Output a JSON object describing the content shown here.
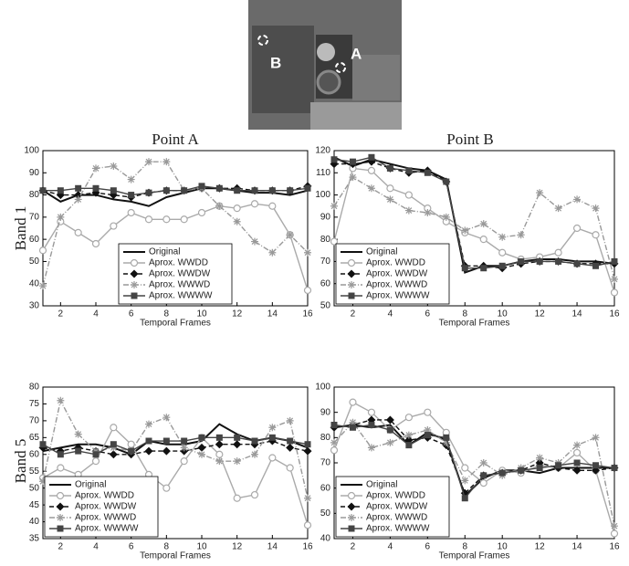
{
  "columns": [
    "Point A",
    "Point B"
  ],
  "rows": [
    "Band 1",
    "Band 5"
  ],
  "image": {
    "labels": [
      "B",
      "A"
    ]
  },
  "chart_data": [
    {
      "type": "line",
      "xlabel": "Temporal Frames",
      "legend": "lower center",
      "xlim": [
        1,
        16
      ],
      "xticks": [
        2,
        4,
        6,
        8,
        10,
        12,
        14,
        16
      ],
      "ylim": [
        30,
        100
      ],
      "yticks": [
        30,
        40,
        50,
        60,
        70,
        80,
        90,
        100
      ],
      "x": [
        1,
        2,
        3,
        4,
        5,
        6,
        7,
        8,
        9,
        10,
        11,
        12,
        13,
        14,
        15,
        16
      ],
      "series": [
        {
          "name": "Original",
          "color": "#111",
          "marker": "none",
          "dash": "solid",
          "values": [
            82,
            77,
            80,
            80,
            78,
            77,
            75,
            79,
            81,
            83,
            83,
            82,
            81,
            81,
            80,
            82
          ]
        },
        {
          "name": "Aprox. WWDD",
          "color": "#aaa",
          "marker": "circle",
          "dash": "solid",
          "values": [
            55,
            68,
            63,
            58,
            66,
            72,
            69,
            69,
            69,
            72,
            75,
            74,
            76,
            75,
            62,
            37
          ]
        },
        {
          "name": "Aprox. WWDW",
          "color": "#111",
          "marker": "diamond",
          "dash": "dashed",
          "values": [
            82,
            80,
            80,
            81,
            80,
            79,
            81,
            82,
            82,
            83,
            83,
            83,
            82,
            82,
            82,
            84
          ]
        },
        {
          "name": "Aprox. WWWD",
          "color": "#999",
          "marker": "star",
          "dash": "dashdot",
          "values": [
            39,
            70,
            78,
            92,
            93,
            87,
            95,
            95,
            82,
            83,
            75,
            68,
            59,
            54,
            62,
            54
          ]
        },
        {
          "name": "Aprox. WWWW",
          "color": "#444",
          "marker": "square",
          "dash": "solid",
          "values": [
            82,
            82,
            83,
            83,
            82,
            80,
            81,
            82,
            82,
            84,
            83,
            82,
            82,
            82,
            82,
            83
          ]
        }
      ]
    },
    {
      "type": "line",
      "xlabel": "Temporal Frames",
      "legend": "lower left",
      "xlim": [
        1,
        16
      ],
      "xticks": [
        2,
        4,
        6,
        8,
        10,
        12,
        14,
        16
      ],
      "ylim": [
        50,
        120
      ],
      "yticks": [
        50,
        60,
        70,
        80,
        90,
        100,
        110,
        120
      ],
      "x": [
        1,
        2,
        3,
        4,
        5,
        6,
        7,
        8,
        9,
        10,
        11,
        12,
        13,
        14,
        15,
        16
      ],
      "series": [
        {
          "name": "Original",
          "color": "#111",
          "marker": "none",
          "dash": "solid",
          "values": [
            117,
            113,
            116,
            114,
            112,
            111,
            107,
            65,
            68,
            68,
            70,
            71,
            71,
            70,
            70,
            69
          ]
        },
        {
          "name": "Aprox. WWDD",
          "color": "#aaa",
          "marker": "circle",
          "dash": "solid",
          "values": [
            79,
            112,
            111,
            103,
            100,
            94,
            88,
            83,
            80,
            74,
            71,
            72,
            74,
            85,
            82,
            56
          ]
        },
        {
          "name": "Aprox. WWDW",
          "color": "#111",
          "marker": "diamond",
          "dash": "dashed",
          "values": [
            114,
            114,
            115,
            112,
            110,
            111,
            106,
            68,
            68,
            67,
            69,
            70,
            70,
            69,
            69,
            69
          ]
        },
        {
          "name": "Aprox. WWWD",
          "color": "#999",
          "marker": "star",
          "dash": "dashdot",
          "values": [
            95,
            108,
            103,
            98,
            93,
            92,
            90,
            84,
            87,
            81,
            82,
            101,
            94,
            98,
            94,
            62
          ]
        },
        {
          "name": "Aprox. WWWW",
          "color": "#444",
          "marker": "square",
          "dash": "solid",
          "values": [
            116,
            115,
            117,
            112,
            111,
            110,
            106,
            67,
            67,
            68,
            70,
            70,
            70,
            69,
            68,
            70
          ]
        }
      ]
    },
    {
      "type": "line",
      "xlabel": "Temporal Frames",
      "legend": "lower left",
      "xlim": [
        1,
        16
      ],
      "xticks": [
        2,
        4,
        6,
        8,
        10,
        12,
        14,
        16
      ],
      "ylim": [
        35,
        80
      ],
      "yticks": [
        35,
        40,
        45,
        50,
        55,
        60,
        65,
        70,
        75,
        80
      ],
      "x": [
        1,
        2,
        3,
        4,
        5,
        6,
        7,
        8,
        9,
        10,
        11,
        12,
        13,
        14,
        15,
        16
      ],
      "series": [
        {
          "name": "Original",
          "color": "#111",
          "marker": "none",
          "dash": "solid",
          "values": [
            61,
            62,
            63,
            63,
            62,
            60,
            64,
            63,
            63,
            64,
            69,
            66,
            64,
            65,
            64,
            62
          ]
        },
        {
          "name": "Aprox. WWDD",
          "color": "#aaa",
          "marker": "circle",
          "dash": "solid",
          "values": [
            53,
            56,
            54,
            58,
            68,
            63,
            54,
            50,
            58,
            65,
            60,
            47,
            48,
            59,
            56,
            39
          ]
        },
        {
          "name": "Aprox. WWDW",
          "color": "#111",
          "marker": "diamond",
          "dash": "dashed",
          "values": [
            62,
            61,
            62,
            61,
            60,
            60,
            61,
            61,
            61,
            62,
            63,
            63,
            63,
            64,
            62,
            61
          ]
        },
        {
          "name": "Aprox. WWWD",
          "color": "#999",
          "marker": "star",
          "dash": "dashdot",
          "values": [
            52,
            76,
            66,
            61,
            62,
            61,
            69,
            71,
            62,
            60,
            58,
            58,
            60,
            68,
            70,
            47
          ]
        },
        {
          "name": "Aprox. WWWW",
          "color": "#444",
          "marker": "square",
          "dash": "solid",
          "values": [
            63,
            60,
            61,
            60,
            63,
            61,
            64,
            64,
            64,
            65,
            65,
            65,
            64,
            65,
            64,
            63
          ]
        }
      ]
    },
    {
      "type": "line",
      "xlabel": "Temporal Frames",
      "legend": "lower left",
      "xlim": [
        1,
        16
      ],
      "xticks": [
        2,
        4,
        6,
        8,
        10,
        12,
        14,
        16
      ],
      "ylim": [
        40,
        100
      ],
      "yticks": [
        40,
        50,
        60,
        70,
        80,
        90,
        100
      ],
      "x": [
        1,
        2,
        3,
        4,
        5,
        6,
        7,
        8,
        9,
        10,
        11,
        12,
        13,
        14,
        15,
        16
      ],
      "series": [
        {
          "name": "Original",
          "color": "#111",
          "marker": "none",
          "dash": "solid",
          "values": [
            84,
            85,
            84,
            85,
            77,
            82,
            79,
            57,
            64,
            67,
            67,
            66,
            68,
            68,
            68,
            68
          ]
        },
        {
          "name": "Aprox. WWDD",
          "color": "#aaa",
          "marker": "circle",
          "dash": "solid",
          "values": [
            75,
            94,
            90,
            83,
            88,
            90,
            82,
            68,
            62,
            67,
            66,
            69,
            68,
            74,
            67,
            42
          ]
        },
        {
          "name": "Aprox. WWDW",
          "color": "#111",
          "marker": "diamond",
          "dash": "dashed",
          "values": [
            84,
            85,
            87,
            87,
            79,
            80,
            77,
            58,
            65,
            66,
            67,
            70,
            68,
            67,
            67,
            68
          ]
        },
        {
          "name": "Aprox. WWWD",
          "color": "#999",
          "marker": "star",
          "dash": "dashdot",
          "values": [
            78,
            86,
            76,
            78,
            81,
            83,
            78,
            63,
            70,
            65,
            68,
            72,
            70,
            77,
            80,
            45
          ]
        },
        {
          "name": "Aprox. WWWW",
          "color": "#444",
          "marker": "square",
          "dash": "solid",
          "values": [
            85,
            84,
            85,
            83,
            77,
            81,
            80,
            56,
            65,
            66,
            67,
            68,
            69,
            70,
            69,
            68
          ]
        }
      ]
    }
  ]
}
